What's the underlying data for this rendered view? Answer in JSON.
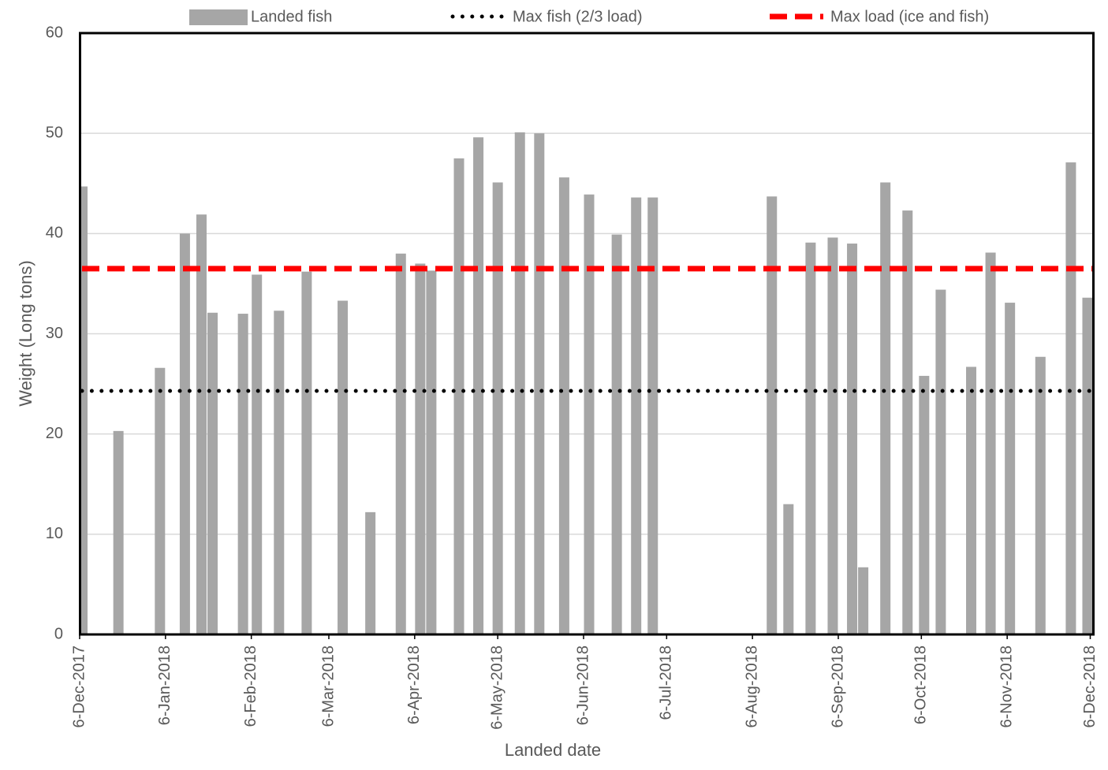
{
  "chart_data": {
    "type": "bar",
    "x_label": "Landed date",
    "y_label": "Weight (Long tons)",
    "x": [
      "2017-12-07",
      "2017-12-20",
      "2018-01-04",
      "2018-01-13",
      "2018-01-19",
      "2018-01-23",
      "2018-02-03",
      "2018-02-08",
      "2018-02-16",
      "2018-02-26",
      "2018-03-11",
      "2018-03-21",
      "2018-04-01",
      "2018-04-08",
      "2018-04-12",
      "2018-04-22",
      "2018-04-29",
      "2018-05-06",
      "2018-05-14",
      "2018-05-21",
      "2018-05-30",
      "2018-06-08",
      "2018-06-18",
      "2018-06-25",
      "2018-07-01",
      "2018-08-13",
      "2018-08-19",
      "2018-08-27",
      "2018-09-04",
      "2018-09-11",
      "2018-09-15",
      "2018-09-23",
      "2018-10-01",
      "2018-10-07",
      "2018-10-13",
      "2018-10-24",
      "2018-10-31",
      "2018-11-07",
      "2018-11-18",
      "2018-11-29",
      "2018-12-05"
    ],
    "series": [
      {
        "name": "Landed fish",
        "color": "#a6a6a6",
        "values": [
          44.7,
          20.3,
          26.6,
          40.0,
          41.9,
          32.1,
          32.0,
          35.9,
          32.3,
          36.2,
          33.3,
          12.2,
          38.0,
          37.0,
          36.3,
          47.5,
          49.6,
          45.1,
          50.1,
          50.0,
          45.6,
          43.9,
          39.9,
          43.6,
          43.6,
          43.7,
          13.0,
          39.1,
          39.6,
          39.0,
          6.7,
          45.1,
          42.3,
          25.8,
          34.4,
          26.7,
          38.1,
          33.1,
          27.7,
          47.1,
          33.6
        ]
      }
    ],
    "reference_lines": [
      {
        "name": "Max fish (2/3 load)",
        "color": "#000000",
        "style": "dotted",
        "value": 24.3
      },
      {
        "name": "Max load (ice and fish)",
        "color": "#ff0000",
        "style": "dashed",
        "value": 36.5
      }
    ],
    "xlim": [
      "2017-12-06",
      "2018-12-07"
    ],
    "xticks": [
      {
        "value": "2017-12-06",
        "label": "6-Dec-2017"
      },
      {
        "value": "2018-01-06",
        "label": "6-Jan-2018"
      },
      {
        "value": "2018-02-06",
        "label": "6-Feb-2018"
      },
      {
        "value": "2018-03-06",
        "label": "6-Mar-2018"
      },
      {
        "value": "2018-04-06",
        "label": "6-Apr-2018"
      },
      {
        "value": "2018-05-06",
        "label": "6-May-2018"
      },
      {
        "value": "2018-06-06",
        "label": "6-Jun-2018"
      },
      {
        "value": "2018-07-06",
        "label": "6-Jul-2018"
      },
      {
        "value": "2018-08-06",
        "label": "6-Aug-2018"
      },
      {
        "value": "2018-09-06",
        "label": "6-Sep-2018"
      },
      {
        "value": "2018-10-06",
        "label": "6-Oct-2018"
      },
      {
        "value": "2018-11-06",
        "label": "6-Nov-2018"
      },
      {
        "value": "2018-12-06",
        "label": "6-Dec-2018"
      }
    ],
    "ylim": [
      0,
      60
    ],
    "yticks": [
      0,
      10,
      20,
      30,
      40,
      50,
      60
    ],
    "grid": true
  }
}
